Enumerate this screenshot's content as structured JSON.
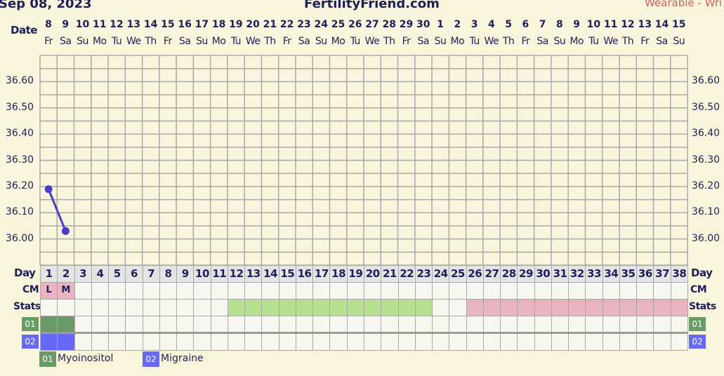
{
  "header": {
    "date": "Sep 08, 2023",
    "site": "FertilityFriend.com",
    "right_text": "Wearable - Wri"
  },
  "labels": {
    "date": "Date",
    "day": "Day",
    "cm": "CM",
    "stats": "Stats"
  },
  "colors": {
    "line": "#4a3ec8",
    "green_stat": "#b4e090",
    "pink_stat": "#e8b4c0",
    "cm_pink": "#e8b4c0",
    "myo": "#6b9a68",
    "mig": "#6868f8",
    "day_row": "#e4e4e4"
  },
  "chart_data": {
    "type": "line",
    "dates": [
      "8",
      "9",
      "10",
      "11",
      "12",
      "13",
      "14",
      "15",
      "16",
      "17",
      "18",
      "19",
      "20",
      "21",
      "22",
      "23",
      "24",
      "25",
      "26",
      "27",
      "28",
      "29",
      "30",
      "1",
      "2",
      "3",
      "4",
      "5",
      "6",
      "7",
      "8",
      "9",
      "10",
      "11",
      "12",
      "13",
      "14",
      "15"
    ],
    "weekdays": [
      "Fr",
      "Sa",
      "Su",
      "Mo",
      "Tu",
      "We",
      "Th",
      "Fr",
      "Sa",
      "Su",
      "Mo",
      "Tu",
      "We",
      "Th",
      "Fr",
      "Sa",
      "Su",
      "Mo",
      "Tu",
      "We",
      "Th",
      "Fr",
      "Sa",
      "Su",
      "Mo",
      "Tu",
      "We",
      "Th",
      "Fr",
      "Sa",
      "Su",
      "Mo",
      "Tu",
      "We",
      "Th",
      "Fr",
      "Sa",
      "Su"
    ],
    "days": [
      "1",
      "2",
      "3",
      "4",
      "5",
      "6",
      "7",
      "8",
      "9",
      "10",
      "11",
      "12",
      "13",
      "14",
      "15",
      "16",
      "17",
      "18",
      "19",
      "20",
      "21",
      "22",
      "23",
      "24",
      "25",
      "26",
      "27",
      "28",
      "29",
      "30",
      "31",
      "32",
      "33",
      "34",
      "35",
      "36",
      "37",
      "38"
    ],
    "temperatures": [
      {
        "day": 1,
        "value": 36.19
      },
      {
        "day": 2,
        "value": 36.03
      }
    ],
    "ylim": [
      35.9,
      36.7
    ],
    "yticks": [
      "36.60",
      "36.50",
      "36.40",
      "36.30",
      "36.20",
      "36.10",
      "36.00"
    ],
    "grid": true,
    "cm": [
      {
        "day": 1,
        "value": "L"
      },
      {
        "day": 2,
        "value": "M"
      }
    ],
    "stats": [
      {
        "from": 12,
        "to": 23,
        "color": "green"
      },
      {
        "from": 26,
        "to": 38,
        "color": "pink"
      }
    ],
    "custom_rows": [
      {
        "code": "01",
        "name": "Myoinositol",
        "days": [
          1,
          2
        ],
        "color": "#6b9a68"
      },
      {
        "code": "02",
        "name": "Migraine",
        "days": [
          1,
          2
        ],
        "color": "#6868f8"
      }
    ]
  }
}
